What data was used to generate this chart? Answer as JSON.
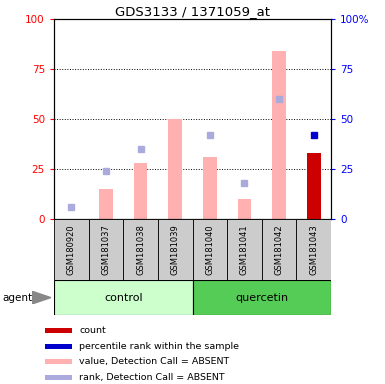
{
  "title": "GDS3133 / 1371059_at",
  "samples": [
    "GSM180920",
    "GSM181037",
    "GSM181038",
    "GSM181039",
    "GSM181040",
    "GSM181041",
    "GSM181042",
    "GSM181043"
  ],
  "value_absent": [
    null,
    15,
    28,
    50,
    31,
    10,
    84,
    null
  ],
  "rank_absent_dot": [
    6,
    24,
    35,
    null,
    42,
    18,
    60,
    null
  ],
  "count_present": [
    null,
    null,
    null,
    null,
    null,
    null,
    null,
    33
  ],
  "percentile_present": [
    null,
    null,
    null,
    null,
    null,
    null,
    null,
    42
  ],
  "control_color": "#ccffcc",
  "quercetin_color": "#55cc55",
  "bar_absent_color": "#ffb0b0",
  "rank_dot_color": "#aaaadd",
  "count_bar_color": "#cc0000",
  "percentile_dot_color": "#0000cc",
  "legend_items": [
    {
      "label": "count",
      "color": "#cc0000"
    },
    {
      "label": "percentile rank within the sample",
      "color": "#0000cc"
    },
    {
      "label": "value, Detection Call = ABSENT",
      "color": "#ffb0b0"
    },
    {
      "label": "rank, Detection Call = ABSENT",
      "color": "#aaaadd"
    }
  ]
}
